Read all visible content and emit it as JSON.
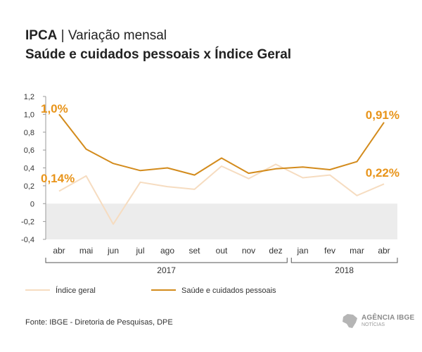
{
  "header": {
    "title_bold": "IPCA",
    "title_rest": " | Variação mensal",
    "subtitle": "Saúde e cuidados pessoais x Índice Geral"
  },
  "chart_data": {
    "type": "line",
    "categories": [
      "abr",
      "mai",
      "jun",
      "jul",
      "ago",
      "set",
      "out",
      "nov",
      "dez",
      "jan",
      "fev",
      "mar",
      "abr"
    ],
    "year_groups": [
      {
        "label": "2017",
        "start": 0,
        "end": 8
      },
      {
        "label": "2018",
        "start": 9,
        "end": 12
      }
    ],
    "ylim": [
      -0.4,
      1.2
    ],
    "yticks": [
      -0.4,
      -0.2,
      0,
      0.2,
      0.4,
      0.6,
      0.8,
      1.0,
      1.2
    ],
    "ytick_labels": [
      "-0,4",
      "-0,2",
      "0",
      "0,2",
      "0,4",
      "0,6",
      "0,8",
      "1,0",
      "1,2"
    ],
    "series": [
      {
        "name": "Índice geral",
        "color": "#f6dcc0",
        "values": [
          0.14,
          0.31,
          -0.23,
          0.24,
          0.19,
          0.16,
          0.42,
          0.28,
          0.44,
          0.29,
          0.32,
          0.09,
          0.22
        ],
        "annotations": [
          {
            "index": 0,
            "text": "0,14%",
            "position": "above-left"
          },
          {
            "index": 12,
            "text": "0,22%",
            "position": "above-right"
          }
        ]
      },
      {
        "name": "Saúde e cuidados pessoais",
        "color": "#d38b1c",
        "values": [
          1.0,
          0.61,
          0.45,
          0.37,
          0.4,
          0.32,
          0.51,
          0.34,
          0.39,
          0.41,
          0.38,
          0.47,
          0.91
        ],
        "annotations": [
          {
            "index": 0,
            "text": "1,0%",
            "position": "above-left"
          },
          {
            "index": 12,
            "text": "0,91%",
            "position": "above-right"
          }
        ]
      }
    ],
    "negative_band_color": "#ececec",
    "annotation_color": "#e8941a",
    "legend": [
      "Índice geral",
      "Saúde e cuidados pessoais"
    ],
    "legend_position": "bottom-left"
  },
  "footer": {
    "source": "Fonte: IBGE - Diretoria de Pesquisas, DPE",
    "logo_main": "AGÊNCIA IBGE",
    "logo_sub": "NOTÍCIAS"
  }
}
